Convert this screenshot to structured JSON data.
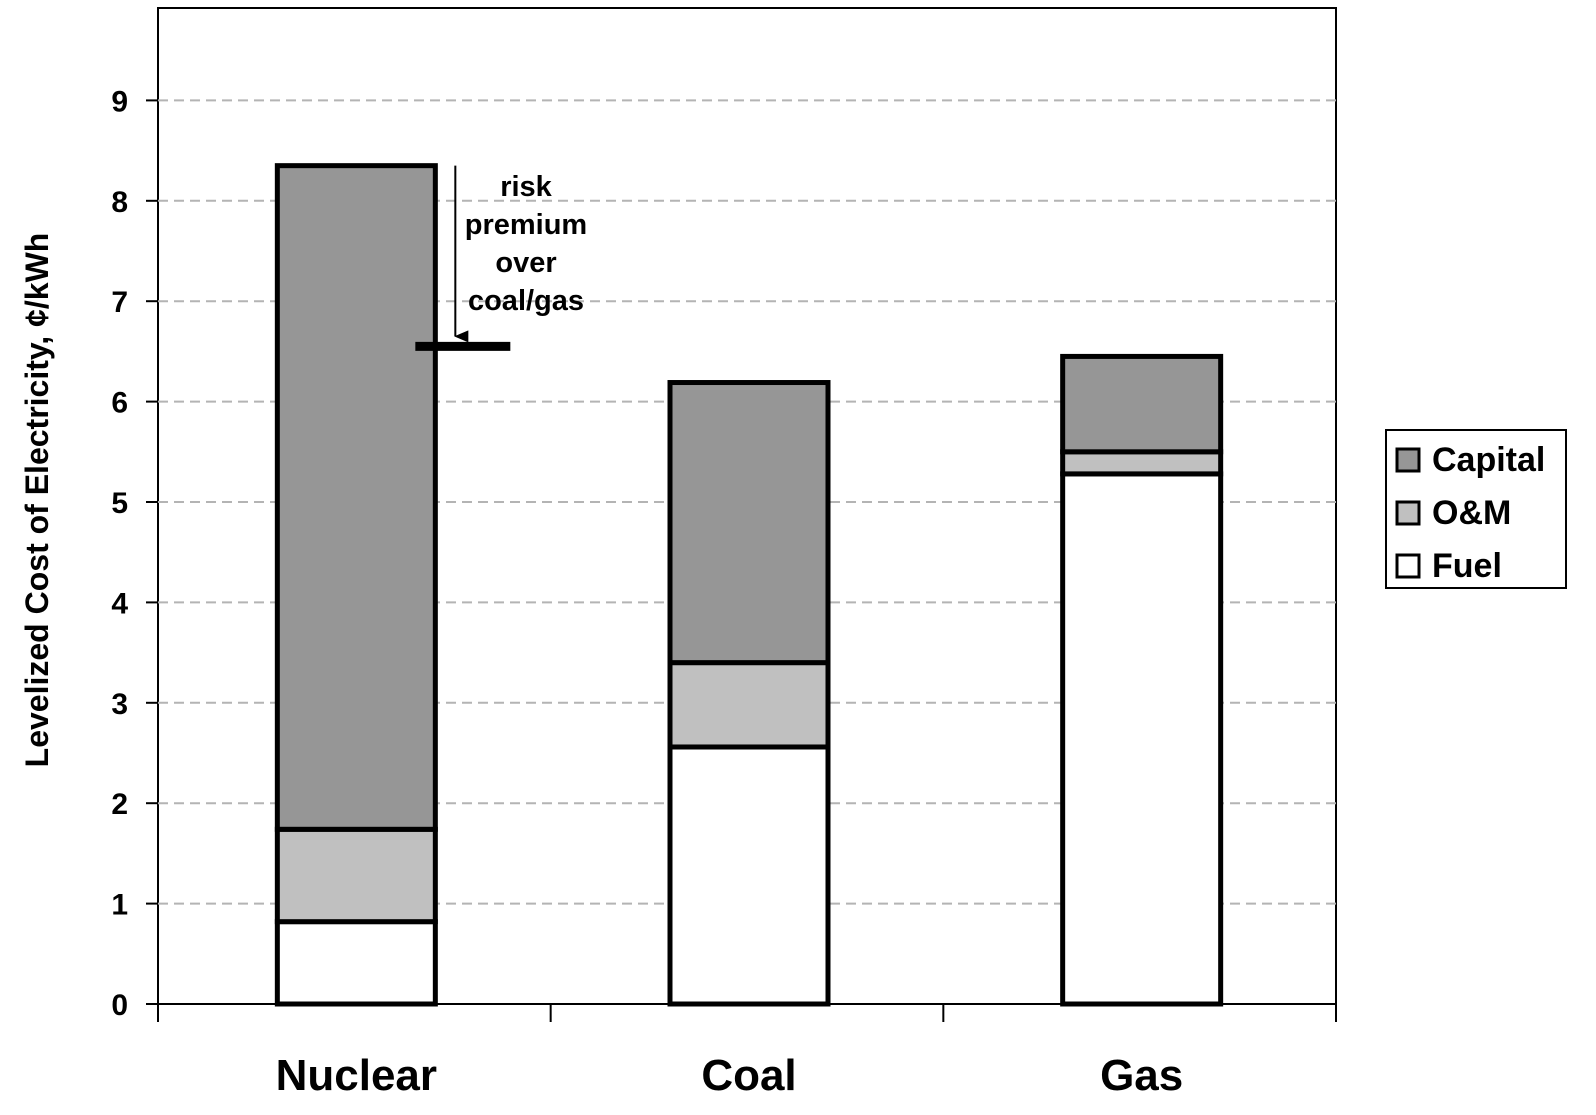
{
  "chart_data": {
    "type": "bar",
    "stacked": true,
    "categories": [
      "Nuclear",
      "Coal",
      "Gas"
    ],
    "series": [
      {
        "name": "Fuel",
        "values": [
          0.82,
          2.56,
          5.28
        ],
        "color": "#ffffff"
      },
      {
        "name": "O&M",
        "values": [
          0.92,
          0.84,
          0.22
        ],
        "color": "#c0c0c0"
      },
      {
        "name": "Capital",
        "values": [
          6.61,
          2.79,
          0.95
        ],
        "color": "#969696"
      }
    ],
    "title": "",
    "xlabel": "",
    "ylabel": "Levelized Cost of Electricity, ¢/kWh",
    "ylim": [
      0,
      10
    ],
    "yticks": [
      0,
      1,
      2,
      3,
      4,
      5,
      6,
      7,
      8,
      9
    ],
    "grid": true,
    "legend_position": "right",
    "legend_order": [
      "Capital",
      "O&M",
      "Fuel"
    ],
    "annotation": {
      "lines": [
        "risk",
        "premium",
        "over",
        "coal/gas"
      ],
      "arrow_from": 8.35,
      "arrow_to": 6.55,
      "marker_value": 6.55
    }
  }
}
